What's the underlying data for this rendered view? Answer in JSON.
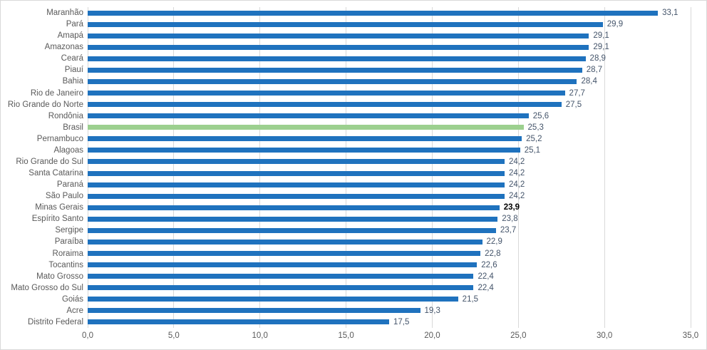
{
  "chart": {
    "background": "#FFFFFF",
    "border_color": "#D9D9D9",
    "gridline_color": "#D9D9D9",
    "axis_text_color": "#595959",
    "category_text_color": "#595959",
    "value_text_color": "#44546A",
    "emphasized_value_color": "#000000"
  },
  "chart_data": {
    "type": "bar",
    "orientation": "horizontal",
    "title": "",
    "xlabel": "",
    "ylabel": "",
    "xlim": [
      0,
      35
    ],
    "xticks": [
      0,
      5,
      10,
      15,
      20,
      25,
      30,
      35
    ],
    "xtick_labels": [
      "0,0",
      "5,0",
      "10,0",
      "15,0",
      "20,0",
      "25,0",
      "30,0",
      "35,0"
    ],
    "grid": "vertical",
    "legend": "none",
    "bar_color": "#1F72BE",
    "highlight_color": "#9CD08F",
    "items": [
      {
        "category": "Maranhão",
        "value": 33.1,
        "label": "33,1"
      },
      {
        "category": "Pará",
        "value": 29.9,
        "label": "29,9"
      },
      {
        "category": "Amapá",
        "value": 29.1,
        "label": "29,1"
      },
      {
        "category": "Amazonas",
        "value": 29.1,
        "label": "29,1"
      },
      {
        "category": "Ceará",
        "value": 28.9,
        "label": "28,9"
      },
      {
        "category": "Piauí",
        "value": 28.7,
        "label": "28,7"
      },
      {
        "category": "Bahia",
        "value": 28.4,
        "label": "28,4"
      },
      {
        "category": "Rio de Janeiro",
        "value": 27.7,
        "label": "27,7"
      },
      {
        "category": "Rio Grande do Norte",
        "value": 27.5,
        "label": "27,5"
      },
      {
        "category": "Rondônia",
        "value": 25.6,
        "label": "25,6"
      },
      {
        "category": "Brasil",
        "value": 25.3,
        "label": "25,3",
        "highlight": true
      },
      {
        "category": "Pernambuco",
        "value": 25.2,
        "label": "25,2"
      },
      {
        "category": "Alagoas",
        "value": 25.1,
        "label": "25,1"
      },
      {
        "category": "Rio Grande do Sul",
        "value": 24.2,
        "label": "24,2"
      },
      {
        "category": "Santa Catarina",
        "value": 24.2,
        "label": "24,2"
      },
      {
        "category": "Paraná",
        "value": 24.2,
        "label": "24,2"
      },
      {
        "category": "São Paulo",
        "value": 24.2,
        "label": "24,2"
      },
      {
        "category": "Minas Gerais",
        "value": 23.9,
        "label": "23,9",
        "bold_label": true
      },
      {
        "category": "Espírito Santo",
        "value": 23.8,
        "label": "23,8"
      },
      {
        "category": "Sergipe",
        "value": 23.7,
        "label": "23,7"
      },
      {
        "category": "Paraíba",
        "value": 22.9,
        "label": "22,9"
      },
      {
        "category": "Roraima",
        "value": 22.8,
        "label": "22,8"
      },
      {
        "category": "Tocantins",
        "value": 22.6,
        "label": "22,6"
      },
      {
        "category": "Mato Grosso",
        "value": 22.4,
        "label": "22,4"
      },
      {
        "category": "Mato Grosso do Sul",
        "value": 22.4,
        "label": "22,4"
      },
      {
        "category": "Goiás",
        "value": 21.5,
        "label": "21,5"
      },
      {
        "category": "Acre",
        "value": 19.3,
        "label": "19,3"
      },
      {
        "category": "Distrito Federal",
        "value": 17.5,
        "label": "17,5"
      }
    ]
  }
}
